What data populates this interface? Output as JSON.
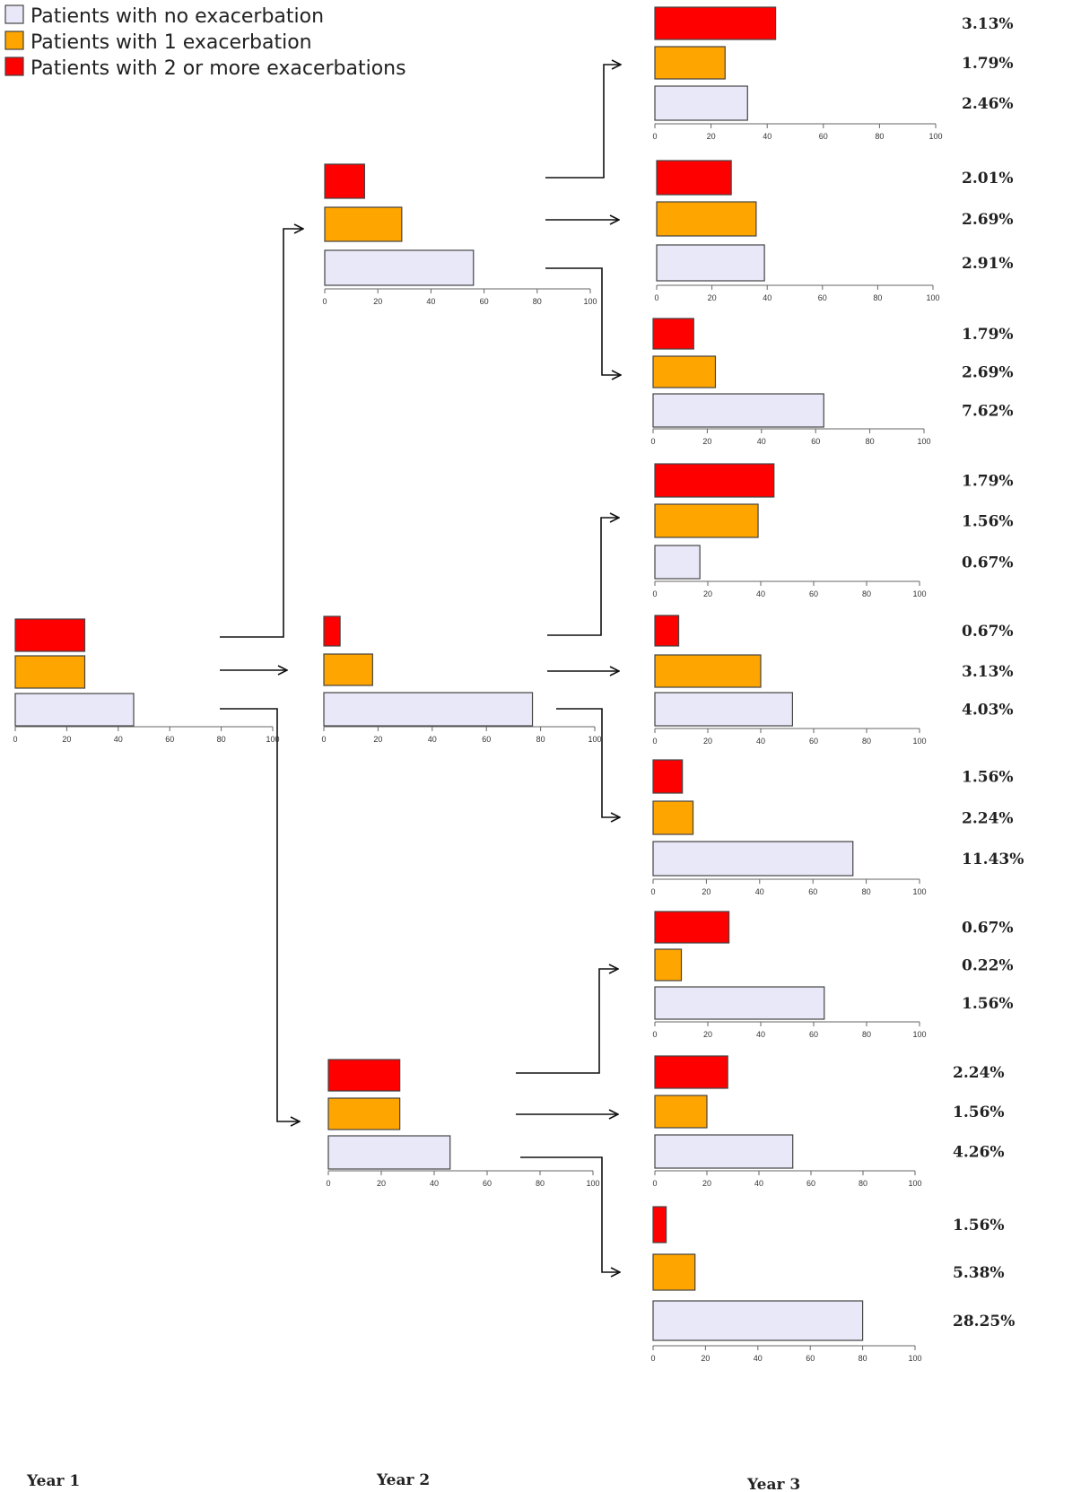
{
  "colors": {
    "none": "#e8e8f8",
    "one": "#ffa500",
    "two": "#ff0000",
    "border": "#444444",
    "axis": "#666666",
    "arrow": "#111111"
  },
  "legend": [
    {
      "key": "none",
      "label": "Patients with no exacerbation"
    },
    {
      "key": "one",
      "label": "Patients with 1 exacerbation"
    },
    {
      "key": "two",
      "label": "Patients with 2 or more exacerbations"
    }
  ],
  "year_labels": [
    "Year 1",
    "Year 2",
    "Year 3"
  ],
  "chart_data": {
    "type": "bar",
    "orientation": "horizontal",
    "xlim": [
      0,
      100
    ],
    "ticks": [
      "0",
      "20",
      "40",
      "60",
      "80",
      "100"
    ],
    "series_order": [
      "two",
      "one",
      "none"
    ],
    "year1": {
      "two": 27,
      "one": 27,
      "none": 46
    },
    "year2": [
      {
        "two": 15,
        "one": 29,
        "none": 56
      },
      {
        "two": 6,
        "one": 18,
        "none": 77
      },
      {
        "two": 27,
        "one": 27,
        "none": 46
      }
    ],
    "year3": [
      {
        "two": 43,
        "one": 25,
        "none": 33,
        "labels": [
          "3.13%",
          "1.79%",
          "2.46%"
        ]
      },
      {
        "two": 27,
        "one": 36,
        "none": 39,
        "labels": [
          "2.01%",
          "2.69%",
          "2.91%"
        ]
      },
      {
        "two": 15,
        "one": 23,
        "none": 63,
        "labels": [
          "1.79%",
          "2.69%",
          "7.62%"
        ]
      },
      {
        "two": 45,
        "one": 39,
        "none": 17,
        "labels": [
          "1.79%",
          "1.56%",
          "0.67%"
        ]
      },
      {
        "two": 9,
        "one": 40,
        "none": 52,
        "labels": [
          "0.67%",
          "3.13%",
          "4.03%"
        ]
      },
      {
        "two": 11,
        "one": 15,
        "none": 75,
        "labels": [
          "1.56%",
          "2.24%",
          "11.43%"
        ]
      },
      {
        "two": 28,
        "one": 10,
        "none": 64,
        "labels": [
          "0.67%",
          "0.22%",
          "1.56%"
        ]
      },
      {
        "two": 28,
        "one": 20,
        "none": 53,
        "labels": [
          "2.24%",
          "1.56%",
          "4.26%"
        ]
      },
      {
        "two": 5,
        "one": 16,
        "none": 80,
        "labels": [
          "1.56%",
          "5.38%",
          "28.25%"
        ]
      }
    ]
  }
}
